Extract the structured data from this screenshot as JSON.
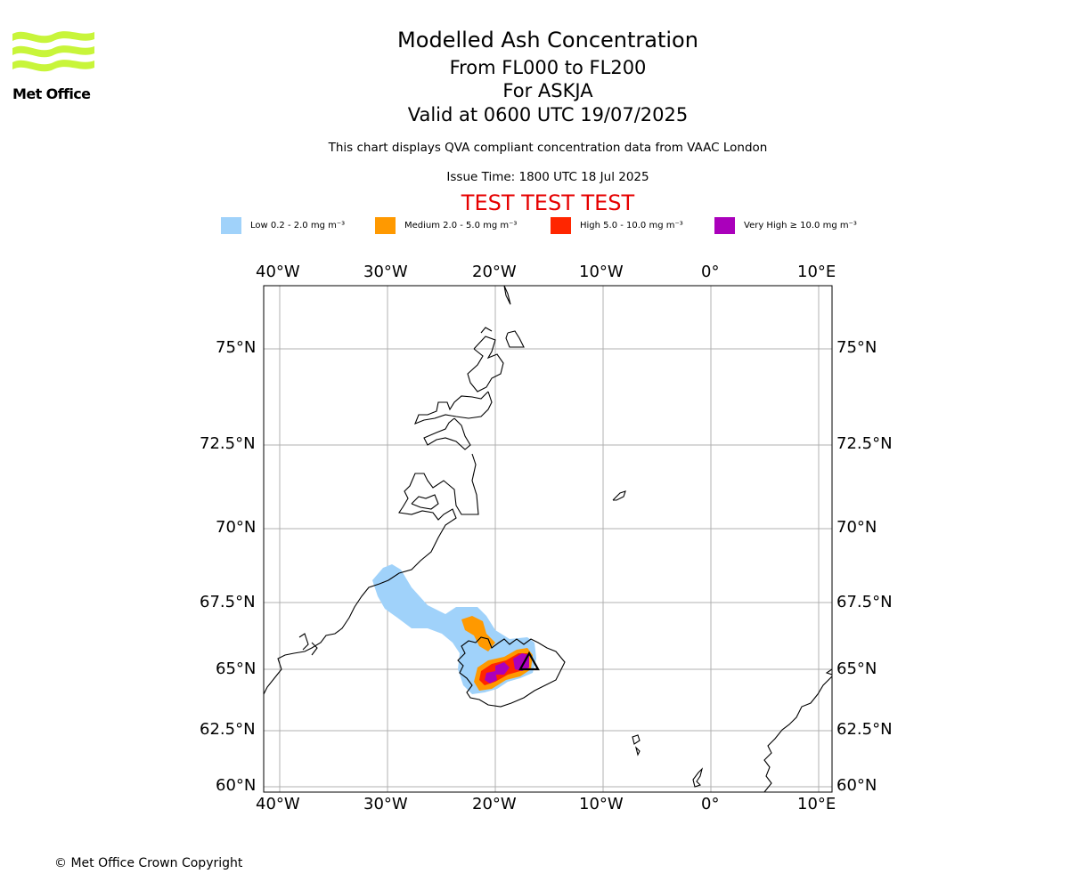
{
  "logo": {
    "name": "Met Office",
    "icon": "met-office-wave-logo",
    "color": "#c8f53a",
    "text_color": "#2b2b2b"
  },
  "header": {
    "title": "Modelled Ash Concentration",
    "levels": "From FL000 to FL200",
    "volcano": "For ASKJA",
    "valid": "Valid at 0600 UTC 19/07/2025",
    "note": "This chart displays QVA compliant concentration data from VAAC London",
    "issue": "Issue Time: 1800 UTC 18 Jul 2025",
    "test": "TEST TEST TEST"
  },
  "legend": [
    {
      "label": "Low 0.2 - 2.0 mg m⁻³",
      "color": "#a0d2fa"
    },
    {
      "label": "Medium 2.0 - 5.0 mg m⁻³",
      "color": "#ff9900"
    },
    {
      "label": "High 5.0 - 10.0 mg m⁻³",
      "color": "#ff2600"
    },
    {
      "label": "Very High  ≥  10.0 mg m⁻³",
      "color": "#aa00bb"
    }
  ],
  "map": {
    "lon_labels": [
      "40°W",
      "30°W",
      "20°W",
      "10°W",
      "0°",
      "10°E"
    ],
    "lat_labels": [
      "75°N",
      "72.5°N",
      "70°N",
      "67.5°N",
      "65°N",
      "62.5°N",
      "60°N"
    ],
    "gridline_color": "#b0b0b0",
    "volcano_marker": "triangle-icon"
  },
  "footer": {
    "copyright": "© Met Office Crown Copyright"
  }
}
